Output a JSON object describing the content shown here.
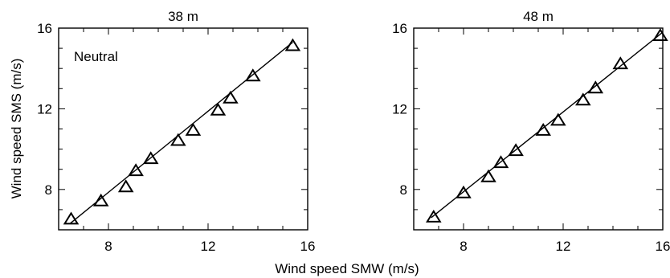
{
  "chart_data": [
    {
      "type": "scatter",
      "title": "38 m",
      "xlabel": "Wind speed SMW (m/s)",
      "ylabel": "Wind speed SMS (m/s)",
      "annotation": "Neutral",
      "xlim": [
        6,
        16
      ],
      "ylim": [
        6,
        16
      ],
      "xticks": [
        8,
        12,
        16
      ],
      "yticks": [
        8,
        12,
        16
      ],
      "x_tick_labels": [
        "8",
        "12",
        "16"
      ],
      "y_tick_labels": [
        "8",
        "12",
        "16"
      ],
      "fit_line": {
        "x": [
          6.45,
          15.4
        ],
        "y": [
          6.3,
          15.3
        ]
      },
      "points": [
        {
          "x": 6.5,
          "y": 6.5
        },
        {
          "x": 7.7,
          "y": 7.4
        },
        {
          "x": 8.7,
          "y": 8.1
        },
        {
          "x": 9.1,
          "y": 8.9
        },
        {
          "x": 9.7,
          "y": 9.5
        },
        {
          "x": 10.8,
          "y": 10.4
        },
        {
          "x": 11.4,
          "y": 10.9
        },
        {
          "x": 12.4,
          "y": 11.9
        },
        {
          "x": 12.9,
          "y": 12.5
        },
        {
          "x": 13.8,
          "y": 13.6
        },
        {
          "x": 15.4,
          "y": 15.1
        }
      ]
    },
    {
      "type": "scatter",
      "title": "48 m",
      "xlabel": "Wind speed SMW (m/s)",
      "ylabel": "Wind speed SMS (m/s)",
      "xlim": [
        6,
        16
      ],
      "ylim": [
        6,
        16
      ],
      "xticks": [
        8,
        12,
        16
      ],
      "yticks": [
        8,
        12,
        16
      ],
      "x_tick_labels": [
        "8",
        "12",
        "16"
      ],
      "y_tick_labels": [
        "8",
        "12",
        "16"
      ],
      "fit_line": {
        "x": [
          6.7,
          16.0
        ],
        "y": [
          6.6,
          15.8
        ]
      },
      "points": [
        {
          "x": 6.8,
          "y": 6.6
        },
        {
          "x": 8.0,
          "y": 7.8
        },
        {
          "x": 9.0,
          "y": 8.6
        },
        {
          "x": 9.5,
          "y": 9.3
        },
        {
          "x": 10.1,
          "y": 9.9
        },
        {
          "x": 11.2,
          "y": 10.9
        },
        {
          "x": 11.8,
          "y": 11.4
        },
        {
          "x": 12.8,
          "y": 12.4
        },
        {
          "x": 13.3,
          "y": 13.0
        },
        {
          "x": 14.3,
          "y": 14.2
        },
        {
          "x": 15.9,
          "y": 15.6
        }
      ]
    }
  ],
  "shared_xlabel": "Wind speed SMW (m/s)",
  "shared_ylabel": "Wind speed SMS (m/s)"
}
